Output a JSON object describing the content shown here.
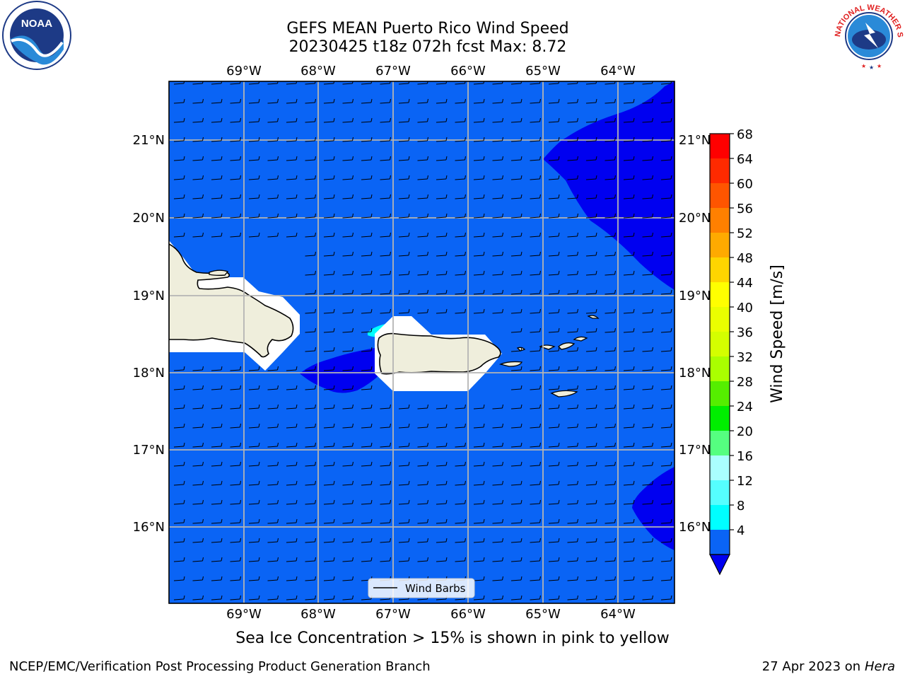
{
  "title": {
    "line1": "GEFS MEAN Puerto Rico Wind Speed",
    "line2": "20230425 t18z 072h fcst   Max: 8.72"
  },
  "map": {
    "lon_labels": [
      "69°W",
      "68°W",
      "67°W",
      "66°W",
      "65°W",
      "64°W"
    ],
    "lat_labels": [
      "21°N",
      "20°N",
      "19°N",
      "18°N",
      "17°N",
      "16°N"
    ],
    "legend_label": "Wind Barbs",
    "ocean_color": "#0a64f5",
    "low_wind_color": "#0000f0",
    "land_color": "#efeedc"
  },
  "colorbar": {
    "label": "Wind Speed [m/s]",
    "ticks": [
      "68",
      "64",
      "60",
      "56",
      "52",
      "48",
      "44",
      "40",
      "36",
      "32",
      "28",
      "24",
      "20",
      "16",
      "12",
      "8",
      "4"
    ],
    "colors": [
      "#ff0000",
      "#ff2a00",
      "#ff5500",
      "#ff8000",
      "#ffaa00",
      "#ffd500",
      "#ffff00",
      "#eaff00",
      "#d4ff00",
      "#aaff00",
      "#55ee00",
      "#00ee00",
      "#55ff80",
      "#aaffff",
      "#55ffff",
      "#00ffff",
      "#0a64f5"
    ],
    "extend_color": "#0000f0"
  },
  "subtitle": "Sea Ice Concentration > 15% is shown in pink to yellow",
  "footer": {
    "left": "NCEP/EMC/Verification Post Processing Product Generation Branch",
    "right_date": "27 Apr 2023 on ",
    "right_host": "Hera"
  },
  "logos": {
    "noaa_text": "NOAA",
    "nws_text": "NATIONAL WEATHER SERVICE"
  }
}
